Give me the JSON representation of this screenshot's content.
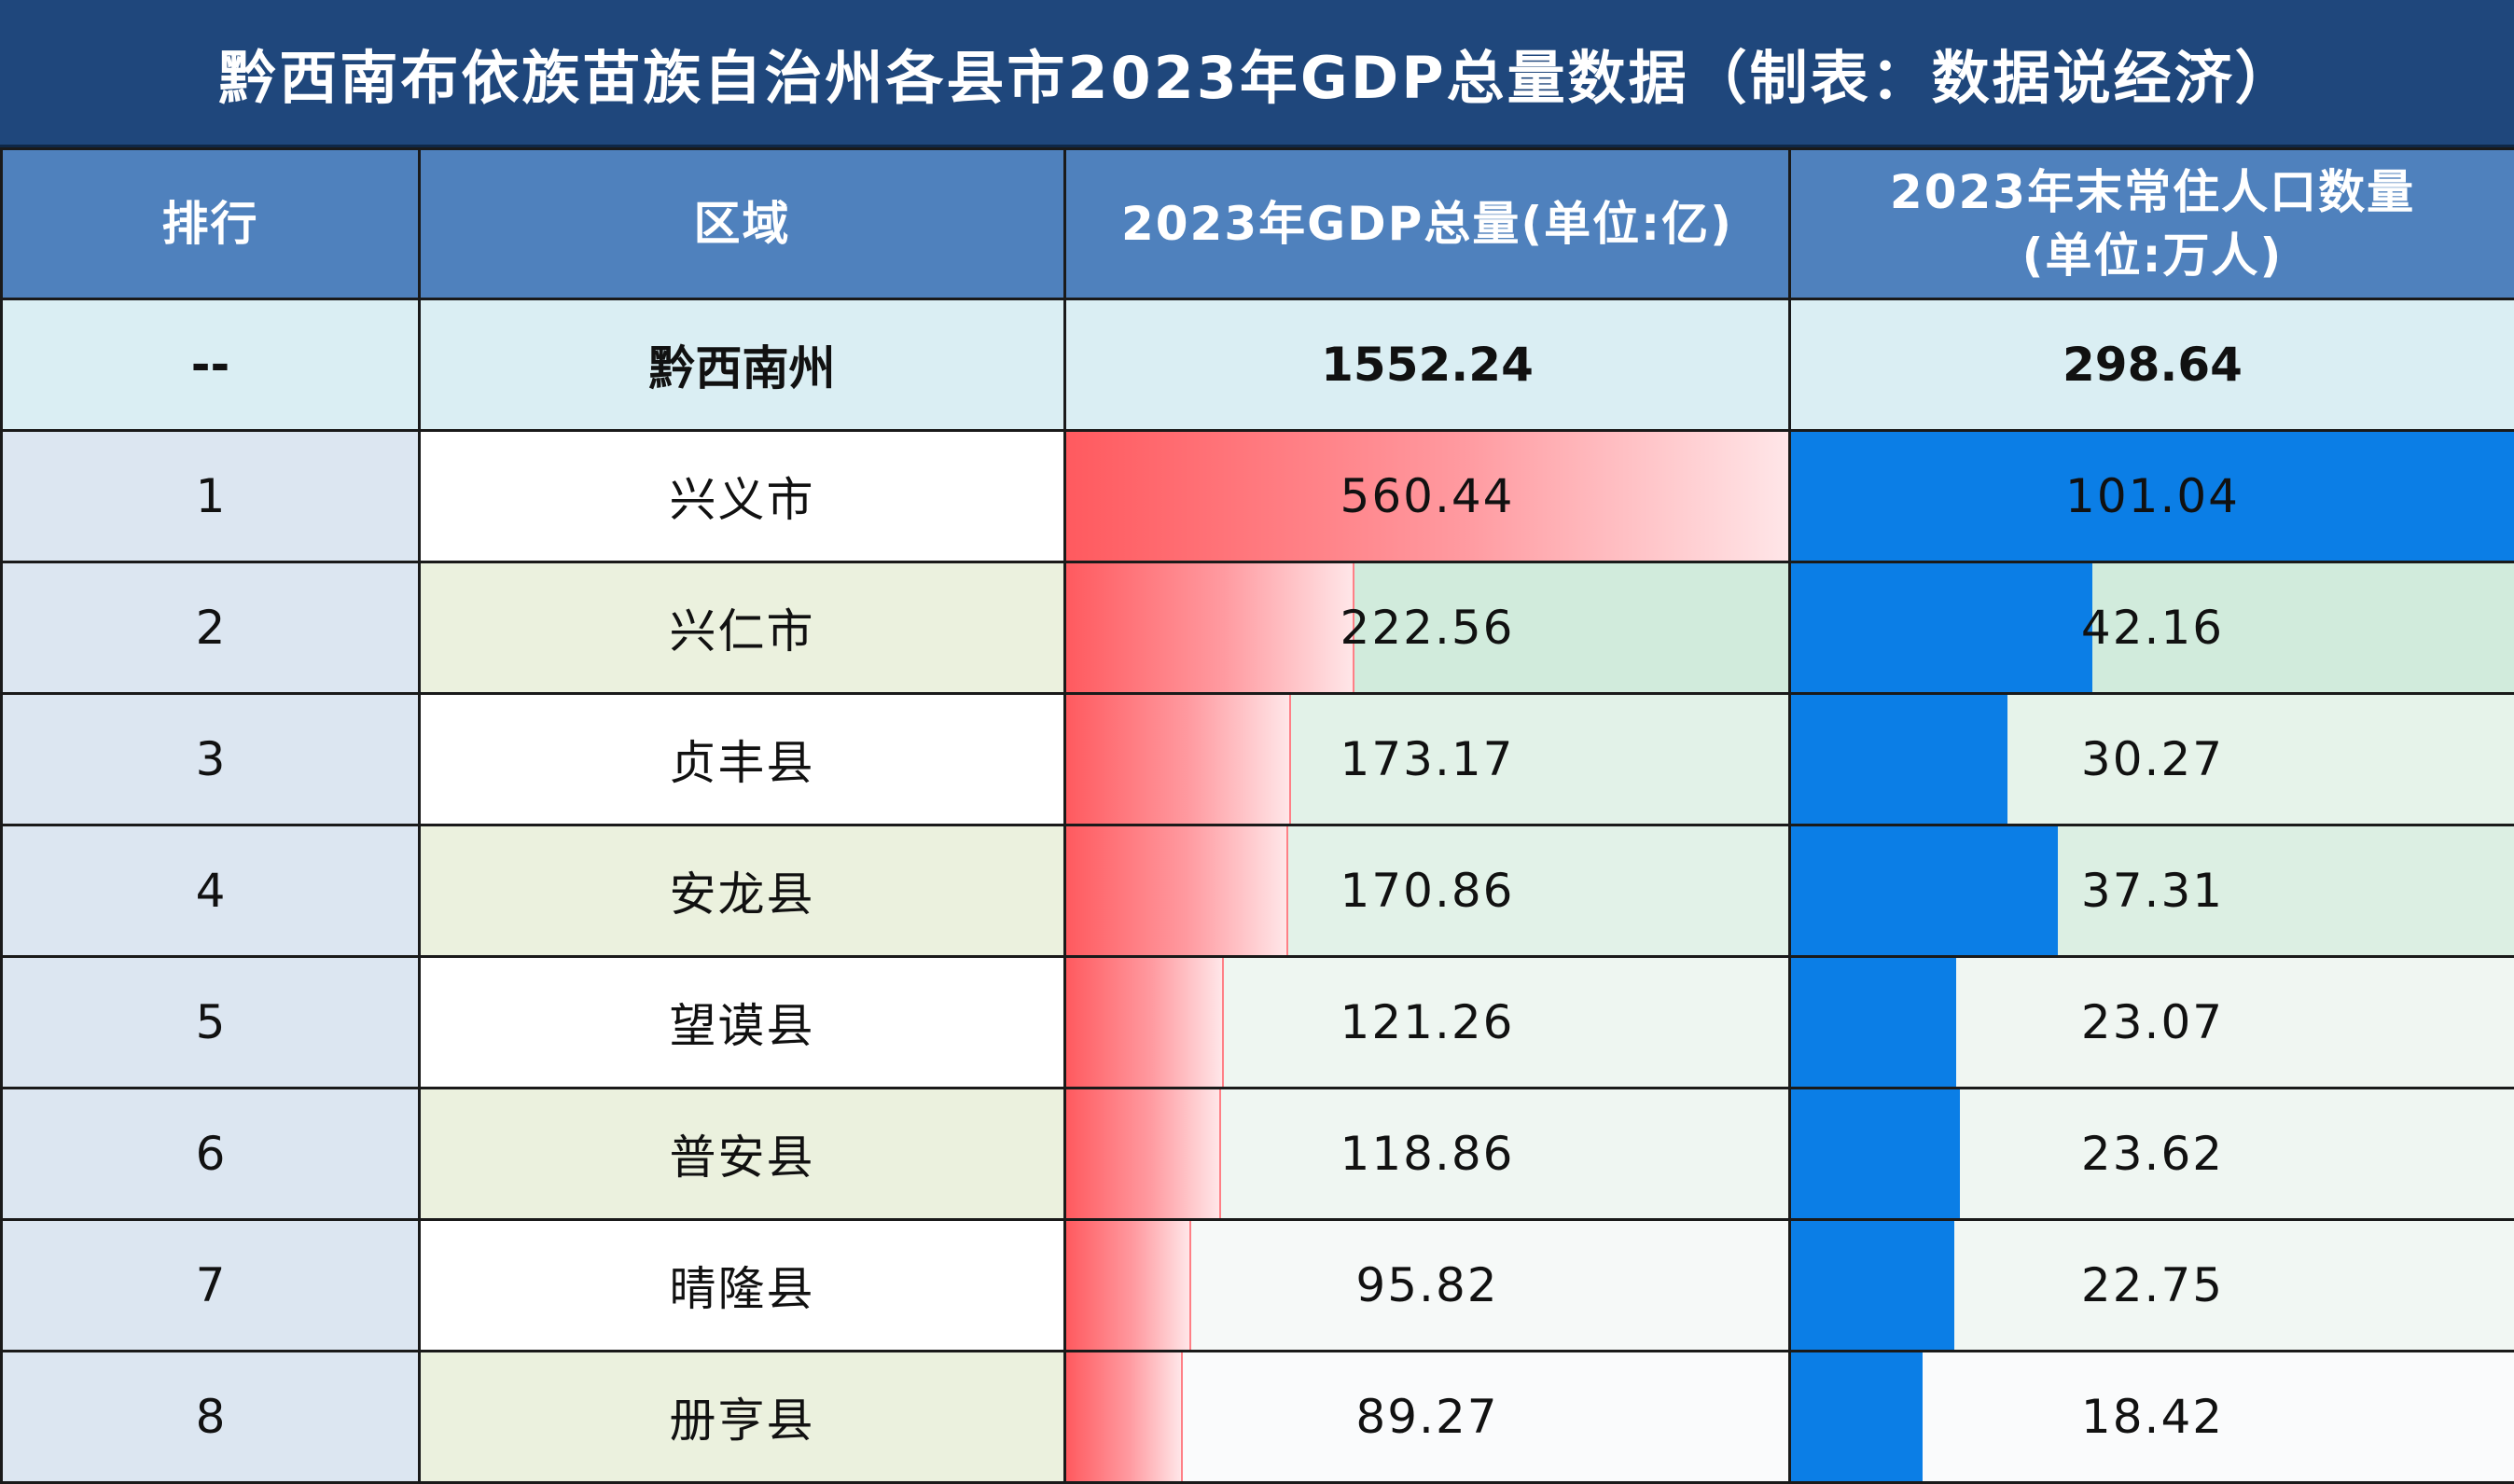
{
  "title": "黔西南布依族苗族自治州各县市2023年GDP总量数据（制表：数据说经济）",
  "headers": {
    "rank": "排行",
    "region": "区域",
    "gdp": "2023年GDP总量(单位:亿)",
    "pop_line1": "2023年末常住人口数量",
    "pop_line2": "(单位:万人)"
  },
  "total": {
    "rank": "--",
    "region": "黔西南州",
    "gdp": "1552.24",
    "pop": "298.64"
  },
  "rows": [
    {
      "rank": "1",
      "region": "兴义市",
      "gdp": "560.44",
      "pop": "101.04",
      "gdp_tint": "#ffffff",
      "pop_tint": "#ffffff"
    },
    {
      "rank": "2",
      "region": "兴仁市",
      "gdp": "222.56",
      "pop": "42.16",
      "gdp_tint": "#d1ebdc",
      "pop_tint": "#d1ebdc"
    },
    {
      "rank": "3",
      "region": "贞丰县",
      "gdp": "173.17",
      "pop": "30.27",
      "gdp_tint": "#e2f2e8",
      "pop_tint": "#e6f3ea"
    },
    {
      "rank": "4",
      "region": "安龙县",
      "gdp": "170.86",
      "pop": "37.31",
      "gdp_tint": "#e2f2e8",
      "pop_tint": "#dcefe3"
    },
    {
      "rank": "5",
      "region": "望谟县",
      "gdp": "121.26",
      "pop": "23.07",
      "gdp_tint": "#eef6f1",
      "pop_tint": "#f0f6f2"
    },
    {
      "rank": "6",
      "region": "普安县",
      "gdp": "118.86",
      "pop": "23.62",
      "gdp_tint": "#eff6f2",
      "pop_tint": "#eff6f2"
    },
    {
      "rank": "7",
      "region": "晴隆县",
      "gdp": "95.82",
      "pop": "22.75",
      "gdp_tint": "#f6f9f8",
      "pop_tint": "#f1f7f3"
    },
    {
      "rank": "8",
      "region": "册亨县",
      "gdp": "89.27",
      "pop": "18.42",
      "gdp_tint": "#fafbfc",
      "pop_tint": "#fafbfc"
    }
  ],
  "colors": {
    "title_bg": "#1f477c",
    "header_bg": "#4f81bd",
    "total_bg": "#daeef3",
    "rank_bg": "#dce6f1",
    "region_alt_bg": "#ebf1de",
    "gdp_bar": "#ff5a5f",
    "pop_bar": "#0b7ee6"
  }
}
